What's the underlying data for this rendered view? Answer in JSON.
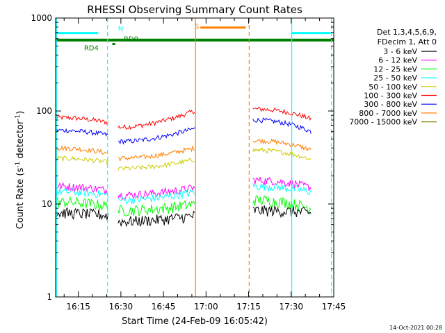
{
  "chart_data": {
    "type": "line",
    "title": "RHESSI Observing Summary Count Rates",
    "xlabel": "Start Time (24-Feb-09 16:05:42)",
    "ylabel_main": "Count Rate (s",
    "ylabel_sup1": "-1",
    "ylabel_mid": " detector",
    "ylabel_sup2": "-1",
    "ylabel_end": ")",
    "timestamp": "14-Oct-2021 00:28",
    "yscale": "log",
    "ylim": [
      1,
      1000
    ],
    "xlim_min": [
      7,
      105
    ],
    "x_tick_min": [
      15,
      30,
      45,
      60,
      75,
      90,
      105
    ],
    "x_tick_labels": [
      "16:15",
      "16:30",
      "16:45",
      "17:00",
      "17:15",
      "17:30",
      "17:45"
    ],
    "y_tick_labels": [
      "1",
      "10",
      "100",
      "1000"
    ],
    "legend": {
      "placement": "top-right",
      "header1": "Det 1,3,4,5,6,9,",
      "header2": "FDecim 1, Att 0",
      "entries": [
        {
          "label": "3 - 6 keV",
          "color": "#000000"
        },
        {
          "label": "6 - 12 keV",
          "color": "#ff00ff"
        },
        {
          "label": "12 - 25 keV",
          "color": "#00ff00"
        },
        {
          "label": "25 - 50 keV",
          "color": "#00ffff"
        },
        {
          "label": "50 - 100 keV",
          "color": "#cccc00"
        },
        {
          "label": "100 - 300 keV",
          "color": "#ff0000"
        },
        {
          "label": "300 - 800 keV",
          "color": "#0000ff"
        },
        {
          "label": "800 - 7000 keV",
          "color": "#ff8000"
        },
        {
          "label": "7000 - 15000 keV",
          "color": "#808000"
        }
      ]
    },
    "series": [
      {
        "color": "#ff0000",
        "segments": [
          [
            7,
            25.5,
            85,
            75
          ],
          [
            29,
            56,
            67,
            100
          ],
          [
            76.5,
            97,
            105,
            82
          ]
        ]
      },
      {
        "color": "#0000ff",
        "segments": [
          [
            7,
            25.5,
            62,
            55
          ],
          [
            29,
            56,
            47,
            65
          ],
          [
            76.5,
            97,
            80,
            60
          ]
        ]
      },
      {
        "color": "#ff8000",
        "segments": [
          [
            7,
            25.5,
            40,
            35
          ],
          [
            29,
            56,
            31,
            40
          ],
          [
            76.5,
            97,
            48,
            38
          ]
        ]
      },
      {
        "color": "#cccc00",
        "segments": [
          [
            7,
            25.5,
            31,
            28
          ],
          [
            29,
            56,
            24,
            30
          ],
          [
            76.5,
            97,
            38,
            30
          ]
        ]
      },
      {
        "color": "#ff00ff",
        "segments": [
          [
            7,
            25.5,
            15.5,
            14
          ],
          [
            29,
            56,
            12.5,
            15
          ],
          [
            76.5,
            97,
            18,
            15
          ]
        ]
      },
      {
        "color": "#00ffff",
        "segments": [
          [
            7,
            25.5,
            13.5,
            12.5
          ],
          [
            29,
            56,
            11,
            13.5
          ],
          [
            76.5,
            97,
            15.5,
            13.5
          ]
        ]
      },
      {
        "color": "#00ff00",
        "segments": [
          [
            7,
            25.5,
            10.5,
            9.5
          ],
          [
            29,
            56,
            8.5,
            10
          ],
          [
            76.5,
            97,
            11,
            9
          ]
        ]
      },
      {
        "color": "#000000",
        "segments": [
          [
            7,
            25.5,
            8,
            7.5
          ],
          [
            29,
            56,
            6.5,
            7.5
          ],
          [
            76.5,
            97,
            8.5,
            8
          ]
        ]
      }
    ],
    "attenuator_bars": [
      {
        "x1": 7,
        "x2": 105,
        "y": 580,
        "color": "#008000",
        "width": 4
      }
    ],
    "flag_labels": [
      {
        "text": "N",
        "x": 29,
        "y": 780,
        "color": "#00ffff"
      },
      {
        "text": "RD0",
        "x": 31,
        "y": 600,
        "color": "#008000"
      },
      {
        "text": "RD4",
        "x": 17,
        "y": 480,
        "color": "#008000"
      },
      {
        "text": "S",
        "x": 56,
        "y": 820,
        "color": "#ff8000"
      }
    ],
    "flag_bars": [
      {
        "x1": 7,
        "x2": 22,
        "y": 690,
        "color": "#00ffff",
        "width": 3
      },
      {
        "x1": 90,
        "x2": 104,
        "y": 690,
        "color": "#00ffff",
        "width": 3
      },
      {
        "x1": 58,
        "x2": 74,
        "y": 790,
        "color": "#ff8000",
        "width": 3
      },
      {
        "x1": 27,
        "x2": 28,
        "y": 525,
        "color": "#008000",
        "width": 3
      }
    ],
    "vertical_markers": [
      {
        "x": 7.3,
        "color": "#00ffff",
        "dash": false
      },
      {
        "x": 25.3,
        "color": "#00ffff",
        "dash": true
      },
      {
        "x": 56.3,
        "color": "#ff8000",
        "dash": false
      },
      {
        "x": 75.2,
        "color": "#ff8000",
        "dash": true
      },
      {
        "x": 90.2,
        "color": "#00ffff",
        "dash": false
      },
      {
        "x": 104.2,
        "color": "#00ffff",
        "dash": true
      }
    ]
  }
}
